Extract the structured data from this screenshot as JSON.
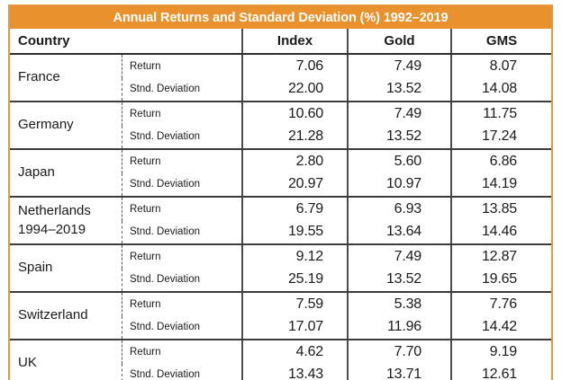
{
  "title": "Annual Returns and Standard Deviation (%) 1992–2019",
  "columns": {
    "country": "Country",
    "index": "Index",
    "gold": "Gold",
    "gms": "GMS"
  },
  "metric_labels": {
    "return": "Return",
    "std": "Stnd. Deviation"
  },
  "colors": {
    "orange_header": "#e8912d",
    "orange_border": "#e9973b",
    "line_dark": "#3c3c3c",
    "text": "#1a1a1a"
  },
  "rows": [
    {
      "country": "France",
      "return": [
        "7.06",
        "7.49",
        "8.07"
      ],
      "std": [
        "22.00",
        "13.52",
        "14.08"
      ]
    },
    {
      "country": "Germany",
      "return": [
        "10.60",
        "7.49",
        "11.75"
      ],
      "std": [
        "21.28",
        "13.52",
        "17.24"
      ]
    },
    {
      "country": "Japan",
      "return": [
        "2.80",
        "5.60",
        "6.86"
      ],
      "std": [
        "20.97",
        "10.97",
        "14.19"
      ]
    },
    {
      "country": "Netherlands",
      "country2": "1994–2019",
      "return": [
        "6.79",
        "6.93",
        "13.85"
      ],
      "std": [
        "19.55",
        "13.64",
        "14.46"
      ]
    },
    {
      "country": "Spain",
      "return": [
        "9.12",
        "7.49",
        "12.87"
      ],
      "std": [
        "25.19",
        "13.52",
        "19.65"
      ]
    },
    {
      "country": "Switzerland",
      "return": [
        "7.59",
        "5.38",
        "7.76"
      ],
      "std": [
        "17.07",
        "11.96",
        "14.42"
      ]
    },
    {
      "country": "UK",
      "return": [
        "4.62",
        "7.70",
        "9.19"
      ],
      "std": [
        "13.43",
        "13.71",
        "12.61"
      ]
    }
  ]
}
